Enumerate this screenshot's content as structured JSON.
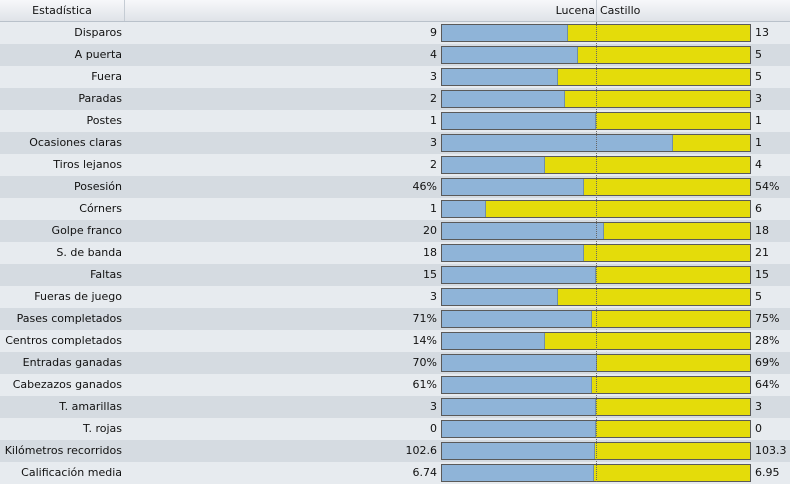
{
  "header": {
    "stat_label": "Estadística",
    "home_team": "Lucena",
    "away_team": "Castillo"
  },
  "colors": {
    "home_bar": "#8fb4d8",
    "away_bar": "#e4dc0a"
  },
  "stats": [
    {
      "label": "Disparos",
      "home": "9",
      "away": "13",
      "home_share": 0.41
    },
    {
      "label": "A puerta",
      "home": "4",
      "away": "5",
      "home_share": 0.44
    },
    {
      "label": "Fuera",
      "home": "3",
      "away": "5",
      "home_share": 0.375
    },
    {
      "label": "Paradas",
      "home": "2",
      "away": "3",
      "home_share": 0.4
    },
    {
      "label": "Postes",
      "home": "1",
      "away": "1",
      "home_share": 0.5
    },
    {
      "label": "Ocasiones claras",
      "home": "3",
      "away": "1",
      "home_share": 0.75
    },
    {
      "label": "Tiros lejanos",
      "home": "2",
      "away": "4",
      "home_share": 0.333
    },
    {
      "label": "Posesión",
      "home": "46%",
      "away": "54%",
      "home_share": 0.46
    },
    {
      "label": "Córners",
      "home": "1",
      "away": "6",
      "home_share": 0.143
    },
    {
      "label": "Golpe franco",
      "home": "20",
      "away": "18",
      "home_share": 0.526
    },
    {
      "label": "S. de banda",
      "home": "18",
      "away": "21",
      "home_share": 0.462
    },
    {
      "label": "Faltas",
      "home": "15",
      "away": "15",
      "home_share": 0.5
    },
    {
      "label": "Fueras de juego",
      "home": "3",
      "away": "5",
      "home_share": 0.375
    },
    {
      "label": "Pases completados",
      "home": "71%",
      "away": "75%",
      "home_share": 0.486
    },
    {
      "label": "Centros completados",
      "home": "14%",
      "away": "28%",
      "home_share": 0.333
    },
    {
      "label": "Entradas ganadas",
      "home": "70%",
      "away": "69%",
      "home_share": 0.504
    },
    {
      "label": "Cabezazos ganados",
      "home": "61%",
      "away": "64%",
      "home_share": 0.488
    },
    {
      "label": "T. amarillas",
      "home": "3",
      "away": "3",
      "home_share": 0.5
    },
    {
      "label": "T. rojas",
      "home": "0",
      "away": "0",
      "home_share": 0.5
    },
    {
      "label": "Kilómetros recorridos",
      "home": "102.6",
      "away": "103.3",
      "home_share": 0.498
    },
    {
      "label": "Calificación media",
      "home": "6.74",
      "away": "6.95",
      "home_share": 0.492
    }
  ]
}
